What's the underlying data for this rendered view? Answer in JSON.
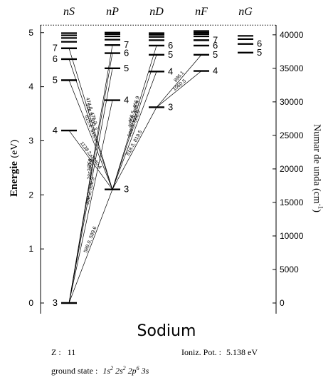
{
  "title": "Sodium",
  "columns": [
    {
      "key": "S",
      "prefix": "n",
      "letter": "S"
    },
    {
      "key": "P",
      "prefix": "n",
      "letter": "P"
    },
    {
      "key": "D",
      "prefix": "n",
      "letter": "D"
    },
    {
      "key": "F",
      "prefix": "n",
      "letter": "F"
    },
    {
      "key": "G",
      "prefix": "n",
      "letter": "G"
    }
  ],
  "left_axis": {
    "title": "Energie",
    "unit": "(eV)",
    "ticks": [
      0,
      1,
      2,
      3,
      4,
      5
    ],
    "range": [
      0,
      5.14
    ]
  },
  "right_axis": {
    "title": "Numar de unda",
    "unit_open": "(cm",
    "unit_exp": "-1",
    "unit_close": ")",
    "ticks": [
      0,
      5000,
      10000,
      15000,
      20000,
      25000,
      30000,
      35000,
      40000
    ]
  },
  "levels": {
    "S": [
      {
        "n": "3",
        "e": 0
      },
      {
        "n": "4",
        "e": 3.19
      },
      {
        "n": "5",
        "e": 4.12
      },
      {
        "n": "6",
        "e": 4.51
      },
      {
        "n": "7",
        "e": 4.71
      },
      {
        "n": "",
        "e": 4.83
      },
      {
        "n": "",
        "e": 4.9
      },
      {
        "n": "",
        "e": 4.95
      },
      {
        "n": "",
        "e": 4.99
      }
    ],
    "P": [
      {
        "n": "3",
        "e": 2.1
      },
      {
        "n": "4",
        "e": 3.75
      },
      {
        "n": "5",
        "e": 4.34
      },
      {
        "n": "6",
        "e": 4.62
      },
      {
        "n": "7",
        "e": 4.77
      },
      {
        "n": "",
        "e": 4.87
      },
      {
        "n": "",
        "e": 4.93
      },
      {
        "n": "",
        "e": 4.97
      },
      {
        "n": "",
        "e": 5.0
      }
    ],
    "D": [
      {
        "n": "3",
        "e": 3.62
      },
      {
        "n": "4",
        "e": 4.28
      },
      {
        "n": "5",
        "e": 4.59
      },
      {
        "n": "6",
        "e": 4.76
      },
      {
        "n": "",
        "e": 4.86
      },
      {
        "n": "",
        "e": 4.92
      },
      {
        "n": "",
        "e": 4.96
      },
      {
        "n": "",
        "e": 4.99
      }
    ],
    "F": [
      {
        "n": "4",
        "e": 4.29
      },
      {
        "n": "5",
        "e": 4.59
      },
      {
        "n": "6",
        "e": 4.76
      },
      {
        "n": "7",
        "e": 4.86
      },
      {
        "n": "",
        "e": 4.93
      },
      {
        "n": "",
        "e": 4.97
      },
      {
        "n": "",
        "e": 5.0
      },
      {
        "n": "",
        "e": 5.03
      }
    ],
    "G": [
      {
        "n": "5",
        "e": 4.63
      },
      {
        "n": "6",
        "e": 4.79
      },
      {
        "n": "",
        "e": 4.88
      },
      {
        "n": "",
        "e": 4.94
      }
    ]
  },
  "transitions": [
    {
      "from": "P3",
      "to": "S3",
      "label": "589.0, 589.6"
    },
    {
      "from": "S4",
      "to": "P3",
      "label": "1138.2, 1140.4"
    },
    {
      "from": "S5",
      "to": "P3",
      "label": "615.4, 616.1"
    },
    {
      "from": "S6",
      "to": "P3",
      "label": "514.9, 515.3"
    },
    {
      "from": "S7",
      "to": "P3",
      "label": "474.8, 475.2"
    },
    {
      "from": "D3",
      "to": "P3",
      "label": "818.3, 819.5"
    },
    {
      "from": "D4",
      "to": "P3",
      "label": "568.3, 568.8"
    },
    {
      "from": "D5",
      "to": "P3",
      "label": "497.8, 498.3"
    },
    {
      "from": "D6",
      "to": "P3",
      "label": "466.5, 466.9"
    },
    {
      "from": "F4",
      "to": "D3",
      "label": "1060.5"
    },
    {
      "from": "F5",
      "to": "D3",
      "label": "896.1"
    },
    {
      "from": "P4",
      "to": "S3",
      "label": "330.2, 330.3"
    },
    {
      "from": "P5",
      "to": "S3",
      "label": "285.3"
    },
    {
      "from": "P6",
      "to": "S3",
      "label": "268.0"
    },
    {
      "from": "P7",
      "to": "S3",
      "label": "259.4"
    }
  ],
  "ionization_energy": 5.138,
  "info": {
    "z_label": "Z :",
    "z_value": "11",
    "ion_label": "Ioniz. Pot. :",
    "ion_value": "5.138 eV",
    "ground_label": "ground state :",
    "ground_parts": [
      {
        "base": "1s",
        "exp": "2"
      },
      {
        "base": "2s",
        "exp": "2"
      },
      {
        "base": "2p",
        "exp": "6"
      },
      {
        "base": "3s",
        "exp": ""
      }
    ]
  }
}
